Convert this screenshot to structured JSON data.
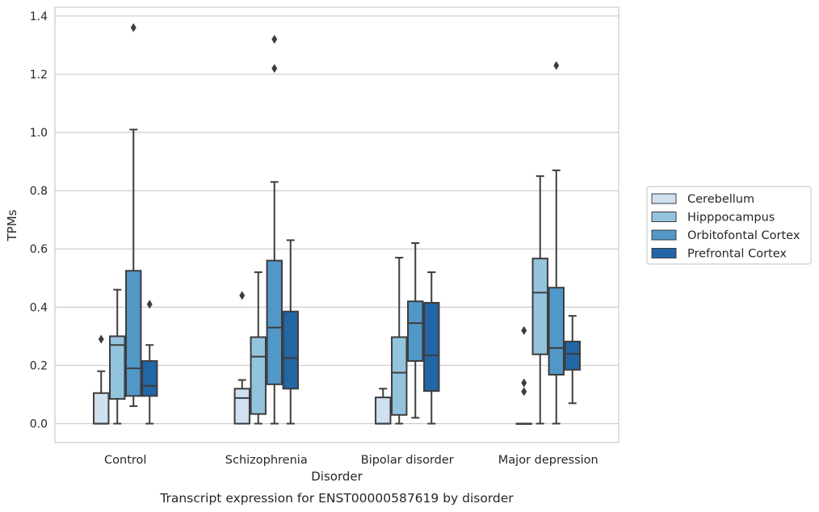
{
  "chart_data": {
    "type": "box",
    "caption": "Transcript expression for ENST00000587619 by disorder",
    "xlabel": "Disorder",
    "ylabel": "TPMs",
    "ylim": [
      -0.065,
      1.43
    ],
    "yticks": [
      0.0,
      0.2,
      0.4,
      0.6,
      0.8,
      1.0,
      1.2,
      1.4
    ],
    "grid": true,
    "legend_position": "right",
    "categories": [
      "Control",
      "Schizophrenia",
      "Bipolar disorder",
      "Major depression"
    ],
    "series": [
      {
        "name": "Cerebellum",
        "color": "#cfe0f1",
        "boxes": [
          {
            "q1": 0.0,
            "median": 0.0,
            "q3": 0.105,
            "whisker_low": 0.0,
            "whisker_high": 0.18,
            "outliers": [
              0.29
            ]
          },
          {
            "q1": 0.0,
            "median": 0.088,
            "q3": 0.12,
            "whisker_low": 0.0,
            "whisker_high": 0.15,
            "outliers": [
              0.44
            ]
          },
          {
            "q1": 0.0,
            "median": 0.0,
            "q3": 0.09,
            "whisker_low": 0.0,
            "whisker_high": 0.12,
            "outliers": []
          },
          {
            "q1": 0.0,
            "median": 0.0,
            "q3": 0.0,
            "whisker_low": 0.0,
            "whisker_high": 0.0,
            "outliers": [
              0.32,
              0.14,
              0.11
            ]
          }
        ]
      },
      {
        "name": "Hipppocampus",
        "color": "#93c4de",
        "boxes": [
          {
            "q1": 0.085,
            "median": 0.27,
            "q3": 0.3,
            "whisker_low": 0.0,
            "whisker_high": 0.46,
            "outliers": []
          },
          {
            "q1": 0.033,
            "median": 0.23,
            "q3": 0.297,
            "whisker_low": 0.0,
            "whisker_high": 0.52,
            "outliers": []
          },
          {
            "q1": 0.03,
            "median": 0.175,
            "q3": 0.297,
            "whisker_low": 0.0,
            "whisker_high": 0.57,
            "outliers": []
          },
          {
            "q1": 0.238,
            "median": 0.45,
            "q3": 0.567,
            "whisker_low": 0.0,
            "whisker_high": 0.85,
            "outliers": []
          }
        ]
      },
      {
        "name": "Orbitofontal Cortex",
        "color": "#5197c8",
        "boxes": [
          {
            "q1": 0.095,
            "median": 0.19,
            "q3": 0.525,
            "whisker_low": 0.06,
            "whisker_high": 1.01,
            "outliers": [
              1.36
            ]
          },
          {
            "q1": 0.135,
            "median": 0.33,
            "q3": 0.56,
            "whisker_low": 0.0,
            "whisker_high": 0.83,
            "outliers": [
              1.32,
              1.22
            ]
          },
          {
            "q1": 0.215,
            "median": 0.345,
            "q3": 0.42,
            "whisker_low": 0.02,
            "whisker_high": 0.62,
            "outliers": []
          },
          {
            "q1": 0.168,
            "median": 0.26,
            "q3": 0.467,
            "whisker_low": 0.0,
            "whisker_high": 0.87,
            "outliers": [
              1.23
            ]
          }
        ]
      },
      {
        "name": "Prefrontal Cortex",
        "color": "#2266a6",
        "boxes": [
          {
            "q1": 0.095,
            "median": 0.13,
            "q3": 0.215,
            "whisker_low": 0.0,
            "whisker_high": 0.27,
            "outliers": [
              0.41
            ]
          },
          {
            "q1": 0.12,
            "median": 0.225,
            "q3": 0.385,
            "whisker_low": 0.0,
            "whisker_high": 0.63,
            "outliers": []
          },
          {
            "q1": 0.112,
            "median": 0.235,
            "q3": 0.415,
            "whisker_low": 0.0,
            "whisker_high": 0.52,
            "outliers": []
          },
          {
            "q1": 0.185,
            "median": 0.24,
            "q3": 0.282,
            "whisker_low": 0.07,
            "whisker_high": 0.37,
            "outliers": []
          }
        ]
      }
    ]
  }
}
